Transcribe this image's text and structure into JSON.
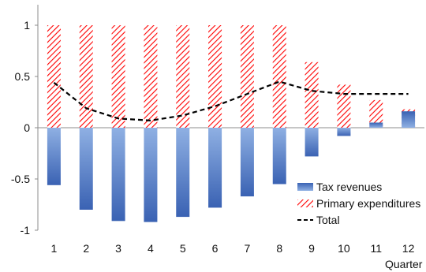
{
  "chart_data": {
    "type": "bar",
    "title": "",
    "xlabel": "Quarter",
    "ylabel": "",
    "categories": [
      "1",
      "2",
      "3",
      "4",
      "5",
      "6",
      "7",
      "8",
      "9",
      "10",
      "11",
      "12"
    ],
    "ylim": [
      -1,
      1
    ],
    "yticks": [
      1,
      0.5,
      0,
      -0.5,
      -1
    ],
    "ytick_labels": [
      "1",
      "0.5",
      "0",
      "-0.5",
      "-1"
    ],
    "grid": false,
    "legend_position": "bottom-right",
    "series": [
      {
        "name": "Tax revenues",
        "type": "bar",
        "color": "#4472C4",
        "values": [
          -0.56,
          -0.8,
          -0.91,
          -0.92,
          -0.87,
          -0.78,
          -0.67,
          -0.55,
          -0.28,
          -0.08,
          0.05,
          0.16
        ]
      },
      {
        "name": "Primary expenditures",
        "type": "bar",
        "pattern": "diagonal-hatch",
        "color": "#FF0000",
        "values": [
          1.0,
          1.0,
          1.0,
          1.0,
          1.0,
          1.0,
          1.0,
          1.0,
          0.64,
          0.42,
          0.27,
          0.18
        ]
      },
      {
        "name": "Total",
        "type": "line",
        "style": "dashed",
        "color": "#000000",
        "values": [
          0.44,
          0.19,
          0.09,
          0.07,
          0.12,
          0.21,
          0.33,
          0.45,
          0.36,
          0.33,
          0.33,
          0.33
        ]
      }
    ]
  }
}
